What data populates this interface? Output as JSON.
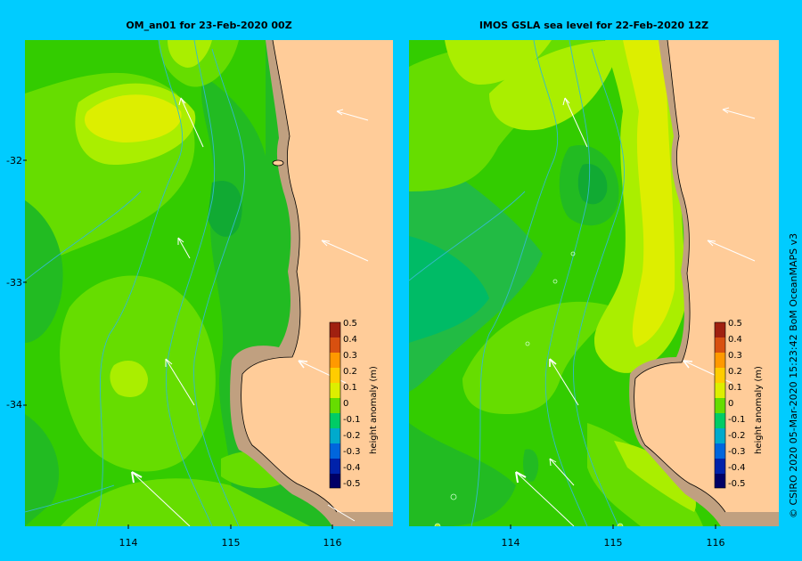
{
  "panels": [
    {
      "title": "OM_an01  for 23-Feb-2020 00Z"
    },
    {
      "title": "IMOS GSLA sea level  for 22-Feb-2020 12Z"
    }
  ],
  "y_ticks": [
    "-32",
    "-33",
    "-34"
  ],
  "x_ticks": [
    "114",
    "115",
    "116"
  ],
  "colorbar": {
    "label": "height anomaly (m)",
    "ticks": [
      "0.5",
      "0.4",
      "0.3",
      "0.2",
      "0.1",
      "0",
      "-0.1",
      "-0.2",
      "-0.3",
      "-0.4",
      "-0.5"
    ]
  },
  "credit": "© CSIRO 2020   05-Mar-2020 15:23:42 BoM OceanMAPS v3",
  "colors": {
    "background": "#00ccff",
    "land": "#ffcc99",
    "coast": "#c0a080",
    "green_dark": "#22bb22",
    "green": "#33cc00",
    "green_light": "#66dd00",
    "yellow_green": "#aaee00",
    "yellow": "#ddee00",
    "teal": "#00bb66"
  }
}
